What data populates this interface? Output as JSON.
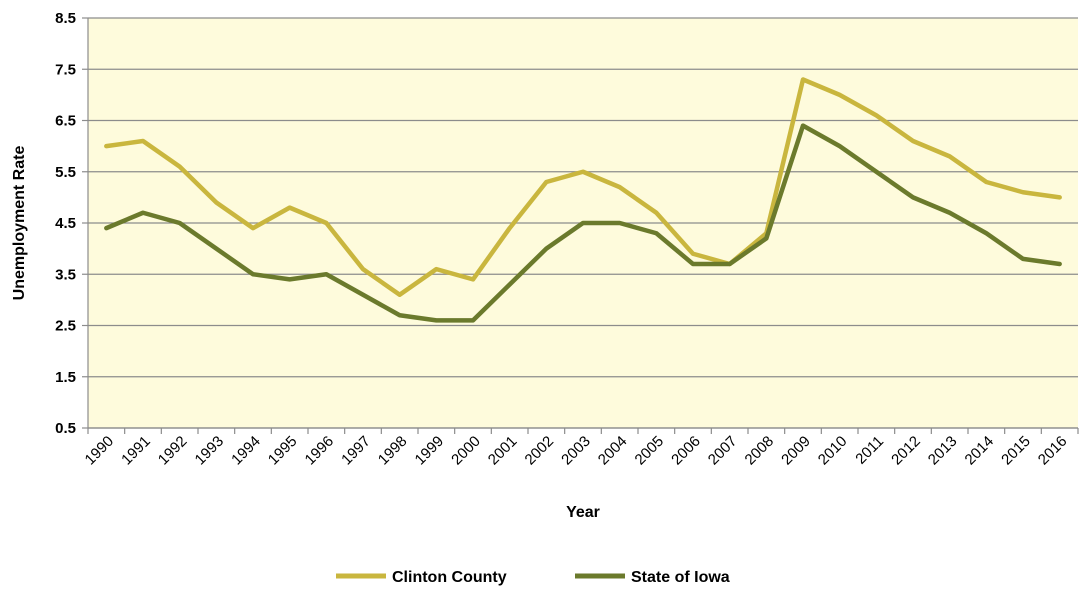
{
  "chart_data": {
    "type": "line",
    "xlabel": "Year",
    "ylabel": "Unemployment Rate",
    "ylim": [
      0.5,
      8.5
    ],
    "yticks": [
      "0.5",
      "1.5",
      "2.5",
      "3.5",
      "4.5",
      "5.5",
      "6.5",
      "7.5",
      "8.5"
    ],
    "categories": [
      "1990",
      "1991",
      "1992",
      "1993",
      "1994",
      "1995",
      "1996",
      "1997",
      "1998",
      "1999",
      "2000",
      "2001",
      "2002",
      "2003",
      "2004",
      "2005",
      "2006",
      "2007",
      "2008",
      "2009",
      "2010",
      "2011",
      "2012",
      "2013",
      "2014",
      "2015",
      "2016"
    ],
    "grid": true,
    "legend_position": "bottom",
    "plot_background": "#fefbdc",
    "series": [
      {
        "name": "Clinton County",
        "color": "#c9b63e",
        "values": [
          6.0,
          6.1,
          5.6,
          4.9,
          4.4,
          4.8,
          4.5,
          3.6,
          3.1,
          3.6,
          3.4,
          4.4,
          5.3,
          5.5,
          5.2,
          4.7,
          3.9,
          3.7,
          4.3,
          7.3,
          7.0,
          6.6,
          6.1,
          5.8,
          5.3,
          5.1,
          5.0
        ]
      },
      {
        "name": "State of Iowa",
        "color": "#6b7a2c",
        "values": [
          4.4,
          4.7,
          4.5,
          4.0,
          3.5,
          3.4,
          3.5,
          3.1,
          2.7,
          2.6,
          2.6,
          3.3,
          4.0,
          4.5,
          4.5,
          4.3,
          3.7,
          3.7,
          4.2,
          6.4,
          6.0,
          5.5,
          5.0,
          4.7,
          4.3,
          3.8,
          3.7
        ]
      }
    ]
  }
}
